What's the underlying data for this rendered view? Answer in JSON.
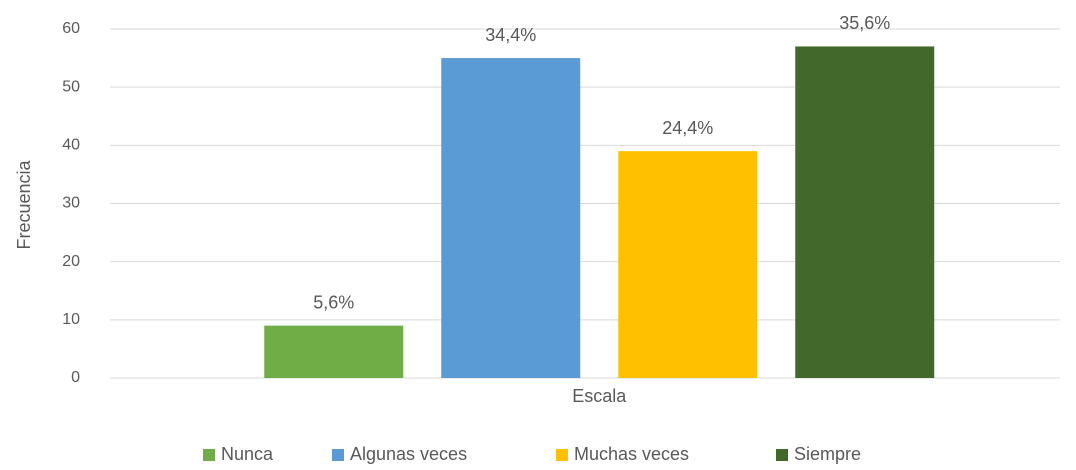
{
  "chart_data": {
    "type": "bar",
    "categories": [
      "Escala"
    ],
    "y_label": "Frecuencia",
    "series": [
      {
        "name": "Nunca",
        "color": "#70ad47",
        "values": [
          9
        ],
        "annotation": "5,6%"
      },
      {
        "name": "Algunas veces",
        "color": "#5b9bd5",
        "values": [
          55
        ],
        "annotation": "34,4%"
      },
      {
        "name": "Muchas veces",
        "color": "#ffc000",
        "values": [
          39
        ],
        "annotation": "24,4%"
      },
      {
        "name": "Siempre",
        "color": "#43682b",
        "values": [
          57
        ],
        "annotation": "35,6%"
      }
    ],
    "ylim": [
      0,
      60
    ],
    "yticks": [
      0,
      10,
      20,
      30,
      40,
      50,
      60
    ],
    "grid": true,
    "legend": "bottom"
  }
}
